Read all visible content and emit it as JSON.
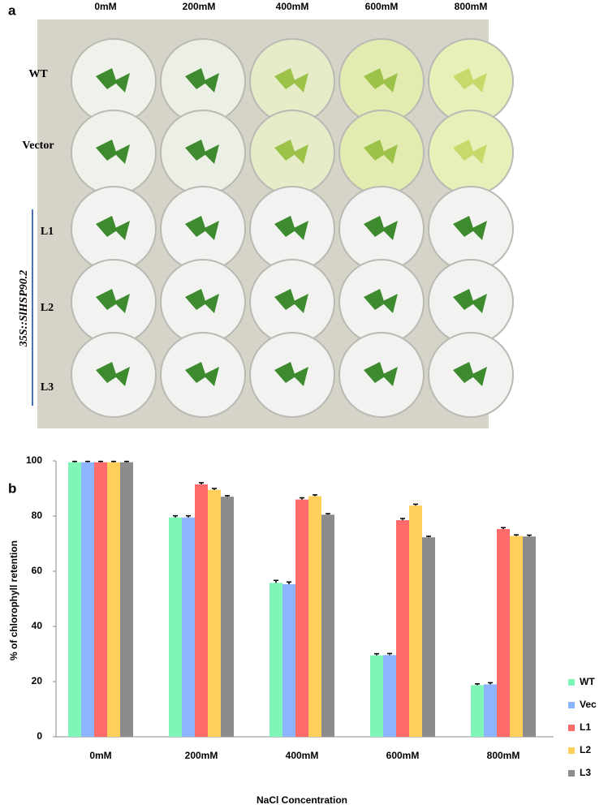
{
  "panel_a": {
    "label": "a",
    "columns": [
      "0mM",
      "200mM",
      "400mM",
      "600mM",
      "800mM"
    ],
    "rows": [
      "WT",
      "Vector",
      "L1",
      "L2",
      "L3"
    ],
    "construct": "35S::SlHSP90.2"
  },
  "panel_b": {
    "label": "b"
  },
  "chart_data": {
    "type": "bar",
    "x_label": "NaCl Concentration",
    "y_label": "% of chlorophyll retention",
    "categories": [
      "0mM",
      "200mM",
      "400mM",
      "600mM",
      "800mM"
    ],
    "series": [
      {
        "name": "WT",
        "color": "#7ff5b8",
        "values": [
          99.5,
          79.5,
          55.8,
          29.5,
          18.7
        ],
        "errors": [
          0.3,
          0.6,
          0.9,
          0.6,
          0.5
        ]
      },
      {
        "name": "Vec",
        "color": "#8fb4ff",
        "values": [
          99.5,
          79.5,
          55.3,
          29.6,
          19
        ],
        "errors": [
          0.3,
          0.6,
          0.8,
          0.6,
          0.6
        ]
      },
      {
        "name": "L1",
        "color": "#ff6b6b",
        "values": [
          99.5,
          91.5,
          86,
          78.5,
          75.3
        ],
        "errors": [
          0.3,
          0.6,
          0.6,
          0.6,
          0.5
        ]
      },
      {
        "name": "L2",
        "color": "#ffcf5a",
        "values": [
          99.5,
          89.5,
          87.2,
          83.8,
          72.8
        ],
        "errors": [
          0.3,
          0.5,
          0.5,
          0.5,
          0.4
        ]
      },
      {
        "name": "L3",
        "color": "#8c8c8c",
        "values": [
          99.5,
          87,
          80.5,
          72.3,
          72.6
        ],
        "errors": [
          0.3,
          0.4,
          0.4,
          0.4,
          0.5
        ]
      }
    ],
    "ylim": [
      0,
      100
    ],
    "yticks": [
      0,
      20,
      40,
      60,
      80,
      100
    ],
    "grid": false,
    "legend": "right"
  }
}
